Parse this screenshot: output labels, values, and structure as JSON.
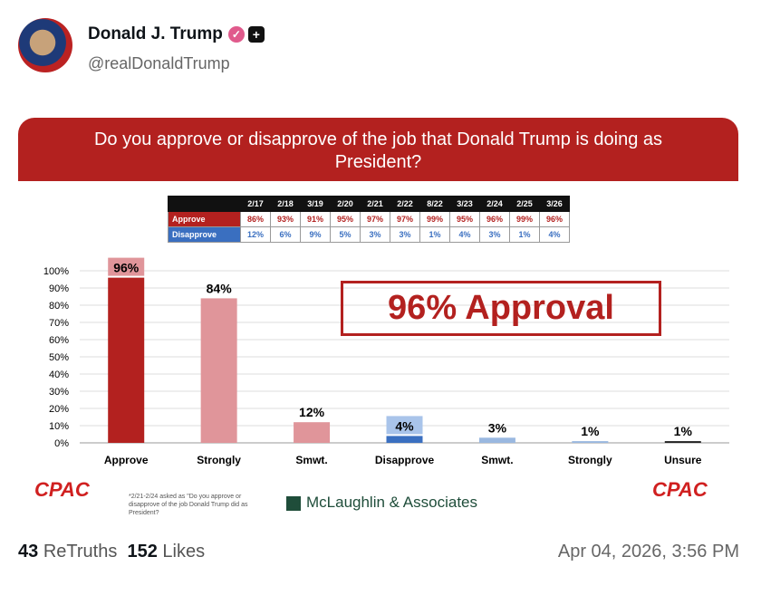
{
  "post": {
    "author": "Donald J. Trump",
    "handle": "@realDonaldTrump",
    "retruths": "43",
    "retruths_label": "ReTruths",
    "likes": "152",
    "likes_label": "Likes",
    "timestamp": "Apr 04, 2026, 3:56 PM"
  },
  "graphic": {
    "question": "Do you approve or disapprove of the job that Donald Trump is doing as President?",
    "headline": "96% Approval",
    "footnote": "*2/21-2/24 asked as \"Do you approve or disapprove of the job Donald Trump did as President?",
    "logo_left": "CPAC",
    "logo_right": "CPAC",
    "pollster": "McLaughlin & Associates",
    "table": {
      "dates": [
        "2/17",
        "2/18",
        "3/19",
        "2/20",
        "2/21",
        "2/22",
        "8/22",
        "3/23",
        "2/24",
        "2/25",
        "3/26"
      ],
      "rows": [
        {
          "label": "Approve",
          "values": [
            "86%",
            "93%",
            "91%",
            "95%",
            "97%",
            "97%",
            "99%",
            "95%",
            "96%",
            "99%",
            "96%"
          ]
        },
        {
          "label": "Disapprove",
          "values": [
            "12%",
            "6%",
            "9%",
            "5%",
            "3%",
            "3%",
            "1%",
            "4%",
            "3%",
            "1%",
            "4%"
          ]
        }
      ]
    }
  },
  "chart_data": {
    "type": "bar",
    "categories": [
      "Approve",
      "Strongly",
      "Smwt.",
      "Disapprove",
      "Smwt.",
      "Strongly",
      "Unsure"
    ],
    "values": [
      96,
      84,
      12,
      4,
      3,
      1,
      1
    ],
    "labels": [
      "96%",
      "84%",
      "12%",
      "4%",
      "3%",
      "1%",
      "1%"
    ],
    "colors": [
      "#b3211f",
      "#e0959a",
      "#e0959a",
      "#3a6fc0",
      "#9ab8e0",
      "#9ab8e0",
      "#222222"
    ],
    "yticks": [
      "0%",
      "10%",
      "20%",
      "30%",
      "40%",
      "50%",
      "60%",
      "70%",
      "80%",
      "90%",
      "100%"
    ],
    "ylim": [
      0,
      100
    ],
    "grid": true
  }
}
